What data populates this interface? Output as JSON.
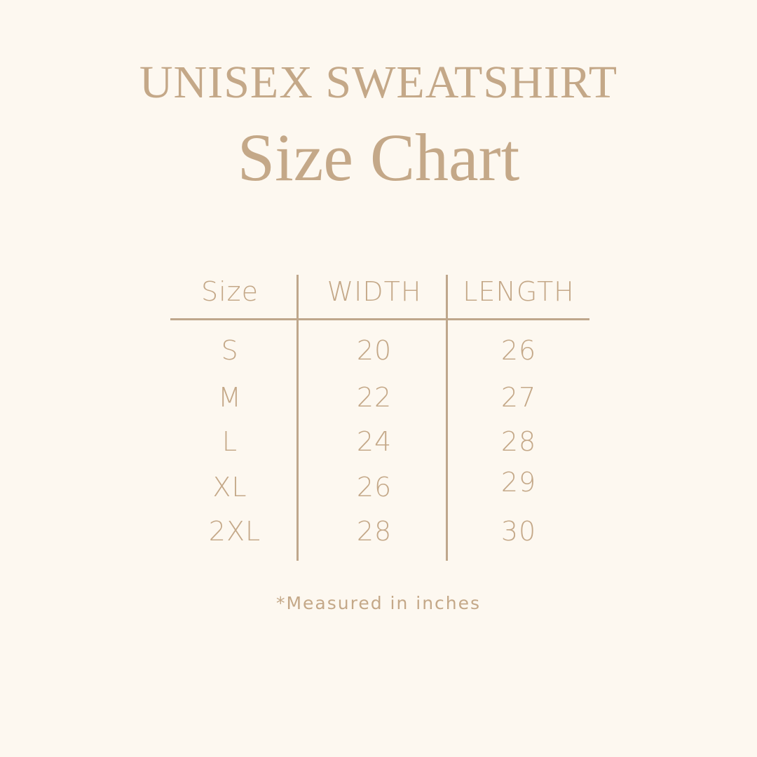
{
  "header": {
    "line1": "UNISEX SWEATSHIRT",
    "line2": "Size Chart"
  },
  "table": {
    "columns": [
      "Size",
      "WIDTH",
      "LENGTH"
    ],
    "rows": [
      [
        "S",
        "20",
        "26"
      ],
      [
        "M",
        "22",
        "27"
      ],
      [
        "L",
        "24",
        "28"
      ],
      [
        "XL",
        "26",
        "29"
      ],
      [
        "2XL",
        "28",
        "30"
      ]
    ]
  },
  "footnote": "*Measured in inches",
  "colors": {
    "background": "#fdf8f0",
    "text": "#c4a888",
    "rule": "#bfa78c"
  }
}
